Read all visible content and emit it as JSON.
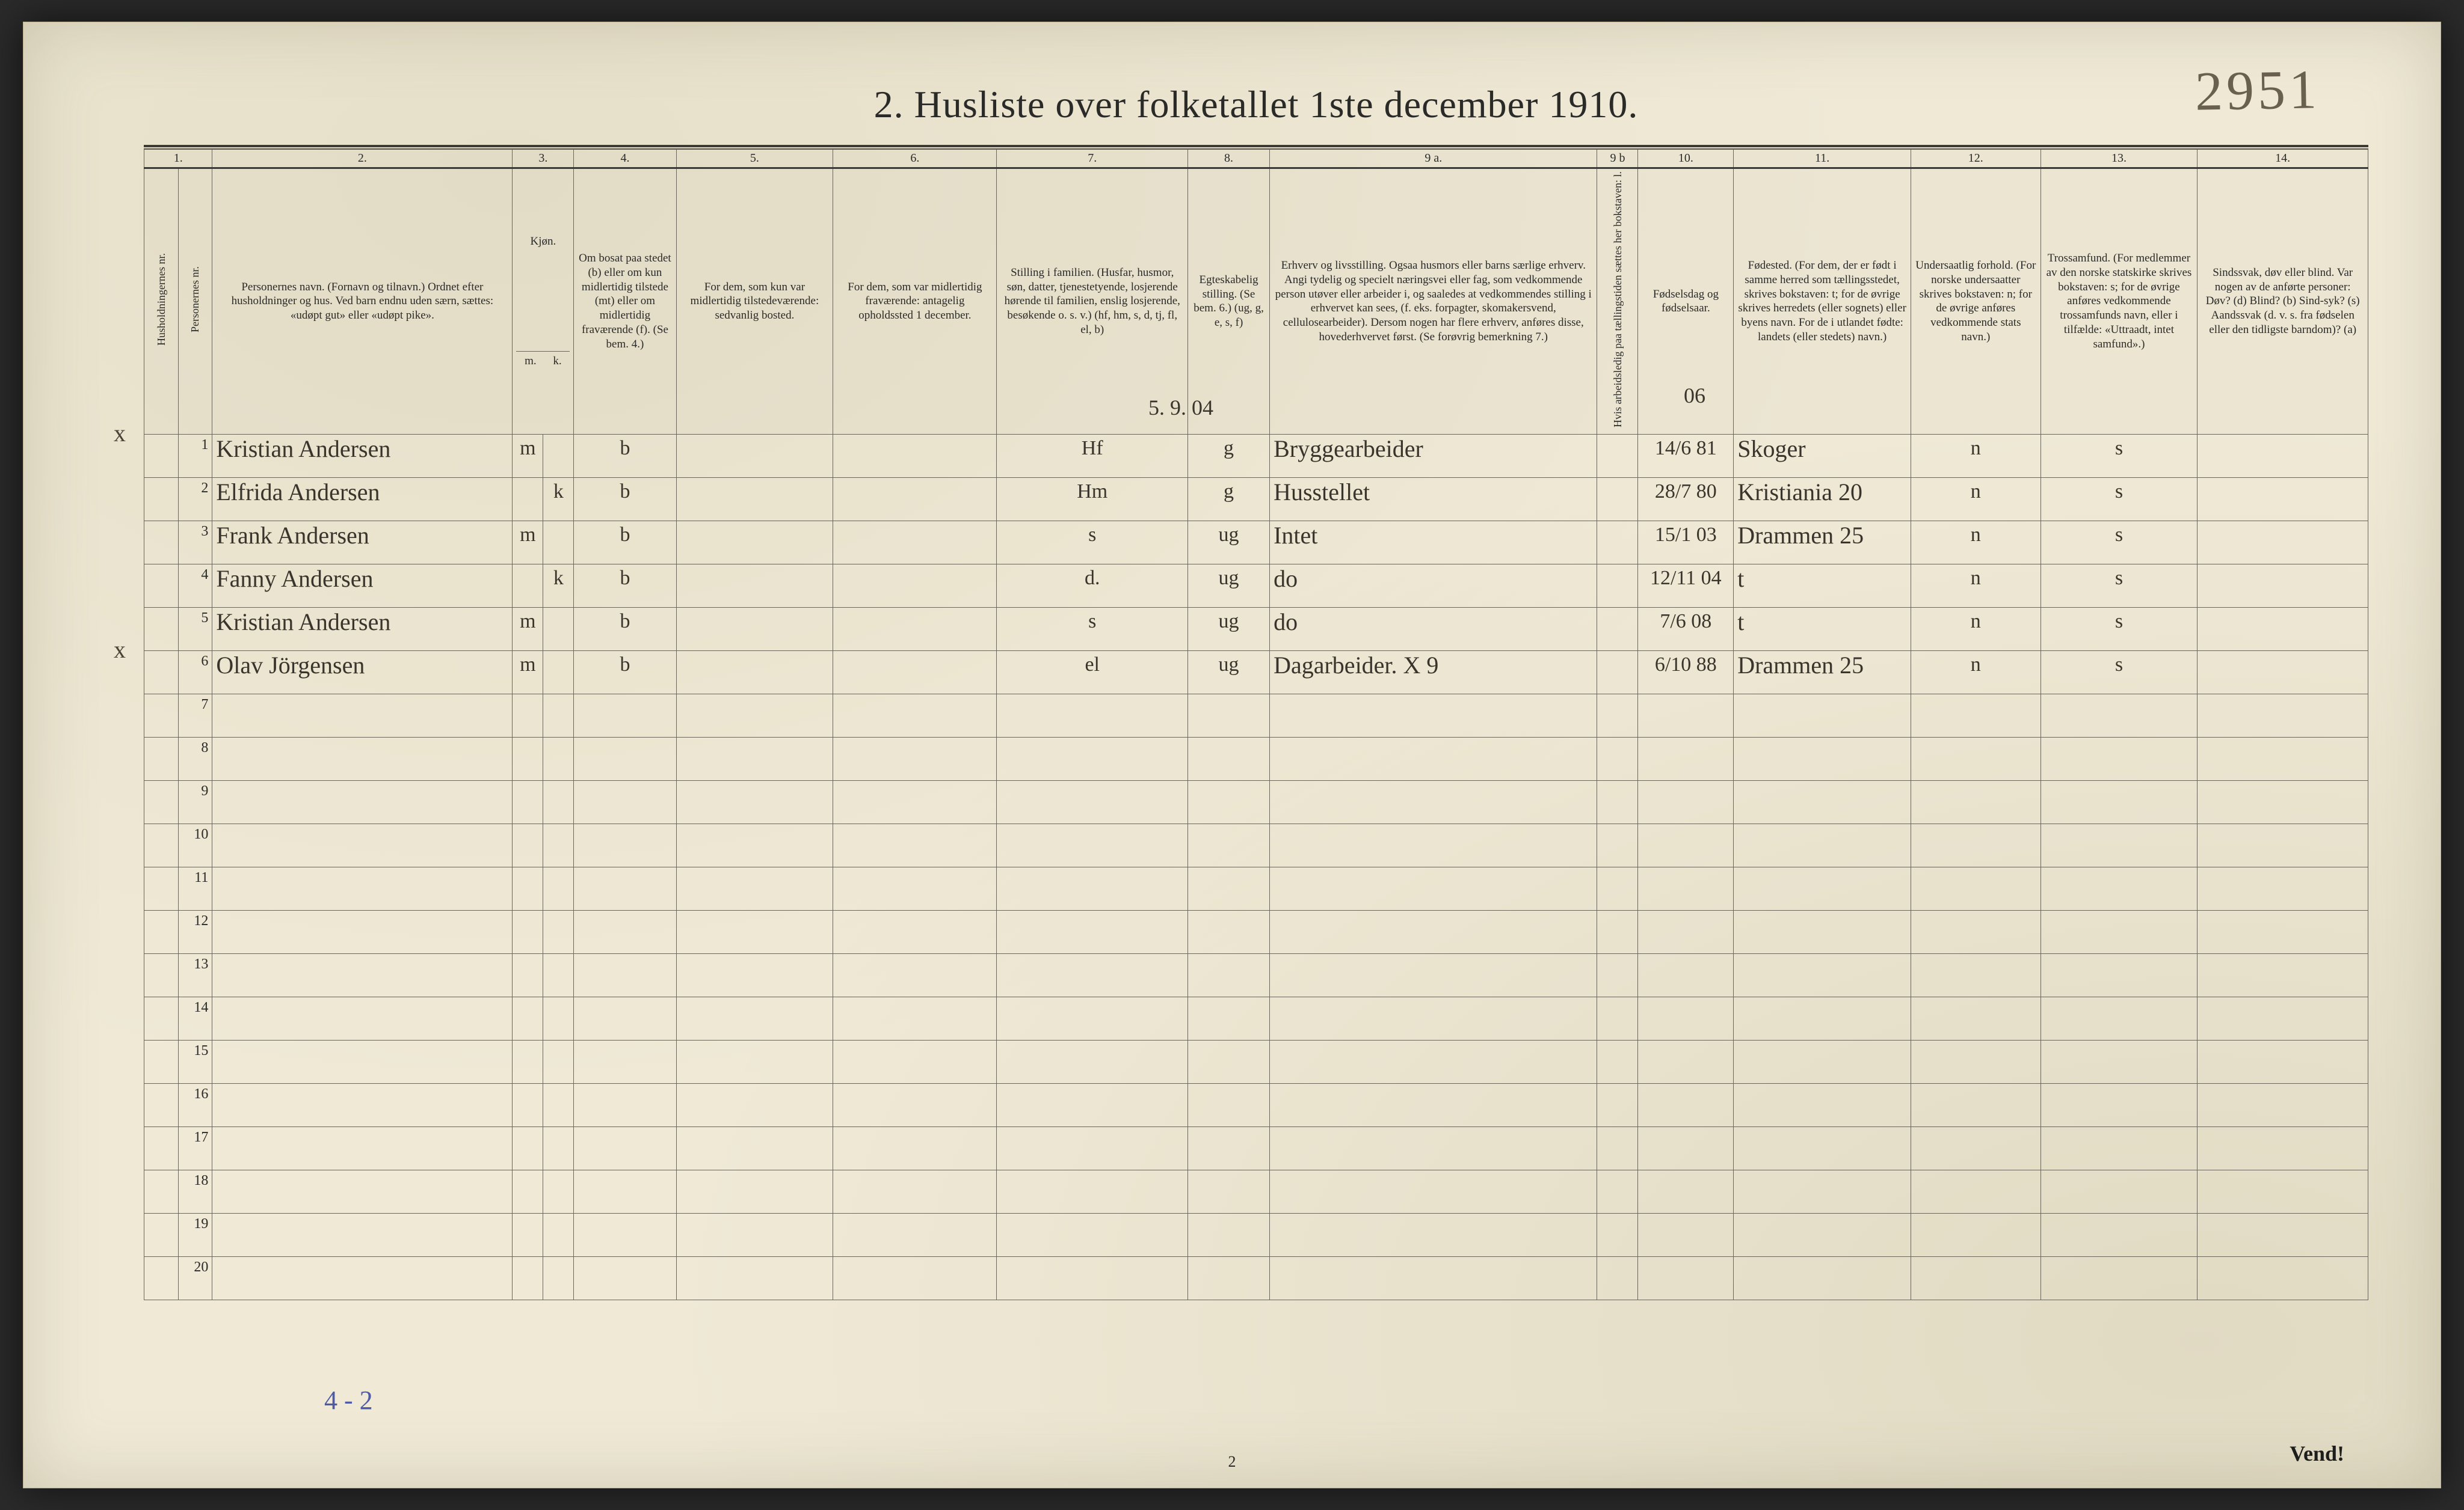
{
  "page": {
    "title": "2.  Husliste over folketallet 1ste december 1910.",
    "top_right_hand": "2951",
    "footer_page_number": "2",
    "vend": "Vend!",
    "below_table_note": "4 - 2",
    "overwrite_date": "5. 9. 04",
    "col11_overnote": "06"
  },
  "colnums": [
    "1.",
    "2.",
    "3.",
    "4.",
    "5.",
    "6.",
    "7.",
    "8.",
    "9 a.",
    "9 b",
    "10.",
    "11.",
    "12.",
    "13.",
    "14."
  ],
  "headers": {
    "h1a": "Husholdningernes nr.",
    "h1b": "Personernes nr.",
    "h2": "Personernes navn.\n(Fornavn og tilnavn.)\nOrdnet efter husholdninger og hus.\nVed barn endnu uden særn, sættes: «udøpt gut» eller «udøpt pike».",
    "h3": "Kjøn.",
    "h3m": "m.",
    "h3k": "k.",
    "h4": "Om bosat paa stedet (b) eller om kun midlertidig tilstede (mt) eller om midlertidig fraværende (f). (Se bem. 4.)",
    "h5": "For dem, som kun var midlertidig tilstedeværende:\nsedvanlig bosted.",
    "h6": "For dem, som var midlertidig fraværende:\nantagelig opholdssted 1 december.",
    "h7": "Stilling i familien.\n(Husfar, husmor, søn, datter, tjenestetyende, losjerende hørende til familien, enslig losjerende, besøkende o. s. v.)\n(hf, hm, s, d, tj, fl, el, b)",
    "h8": "Egteskabelig stilling.\n(Se bem. 6.)\n(ug, g, e, s, f)",
    "h9a": "Erhverv og livsstilling.\nOgsaa husmors eller barns særlige erhverv. Angi tydelig og specielt næringsvei eller fag, som vedkommende person utøver eller arbeider i, og saaledes at vedkommendes stilling i erhvervet kan sees, (f. eks. forpagter, skomakersvend, cellulosearbeider). Dersom nogen har flere erhverv, anføres disse, hovederhvervet først. (Se forøvrig bemerkning 7.)",
    "h9b": "Hvis arbeidsledig paa tællingstiden sættes her bokstaven: l.",
    "h10": "Fødselsdag og fødselsaar.",
    "h11": "Fødested.\n(For dem, der er født i samme herred som tællingsstedet, skrives bokstaven: t; for de øvrige skrives herredets (eller sognets) eller byens navn. For de i utlandet fødte: landets (eller stedets) navn.)",
    "h12": "Undersaatlig forhold.\n(For norske undersaatter skrives bokstaven: n; for de øvrige anføres vedkommende stats navn.)",
    "h13": "Trossamfund.\n(For medlemmer av den norske statskirke skrives bokstaven: s; for de øvrige anføres vedkommende trossamfunds navn, eller i tilfælde: «Uttraadt, intet samfund».)",
    "h14": "Sindssvak, døv eller blind.\nVar nogen av de anførte personer:\nDøv?      (d)\nBlind?    (b)\nSind-syk? (s)\nAandssvak (d. v. s. fra fødselen eller den tidligste barndom)? (a)"
  },
  "rows": [
    {
      "mark": "x",
      "nr": "1",
      "name": "Kristian Andersen",
      "m": "m",
      "k": "",
      "c4": "b",
      "c5": "",
      "c6": "",
      "c7": "Hf",
      "c8": "g",
      "c9a": "Bryggearbeider",
      "c9b": "",
      "c10": "14/6 81",
      "c11": "Skoger",
      "c12": "n",
      "c13": "s",
      "c14": ""
    },
    {
      "mark": "",
      "nr": "2",
      "name": "Elfrida Andersen",
      "m": "",
      "k": "k",
      "c4": "b",
      "c5": "",
      "c6": "",
      "c7": "Hm",
      "c8": "g",
      "c9a": "Husstellet",
      "c9b": "",
      "c10": "28/7 80",
      "c11": "Kristiania 20",
      "c12": "n",
      "c13": "s",
      "c14": ""
    },
    {
      "mark": "",
      "nr": "3",
      "name": "Frank Andersen",
      "m": "m",
      "k": "",
      "c4": "b",
      "c5": "",
      "c6": "",
      "c7": "s",
      "c8": "ug",
      "c9a": "Intet",
      "c9b": "",
      "c10": "15/1 03",
      "c11": "Drammen 25",
      "c12": "n",
      "c13": "s",
      "c14": ""
    },
    {
      "mark": "",
      "nr": "4",
      "name": "Fanny Andersen",
      "m": "",
      "k": "k",
      "c4": "b",
      "c5": "",
      "c6": "",
      "c7": "d.",
      "c8": "ug",
      "c9a": "do",
      "c9b": "",
      "c10": "12/11 04",
      "c11": "t",
      "c12": "n",
      "c13": "s",
      "c14": ""
    },
    {
      "mark": "",
      "nr": "5",
      "name": "Kristian Andersen",
      "m": "m",
      "k": "",
      "c4": "b",
      "c5": "",
      "c6": "",
      "c7": "s",
      "c8": "ug",
      "c9a": "do",
      "c9b": "",
      "c10": "7/6 08",
      "c11": "t",
      "c12": "n",
      "c13": "s",
      "c14": ""
    },
    {
      "mark": "x",
      "nr": "6",
      "name": "Olav Jörgensen",
      "m": "m",
      "k": "",
      "c4": "b",
      "c5": "",
      "c6": "",
      "c7": "el",
      "c8": "ug",
      "c9a": "Dagarbeider.   X 9",
      "c9b": "",
      "c10": "6/10 88",
      "c11": "Drammen 25",
      "c12": "n",
      "c13": "s",
      "c14": ""
    }
  ],
  "blank_rows": 14
}
